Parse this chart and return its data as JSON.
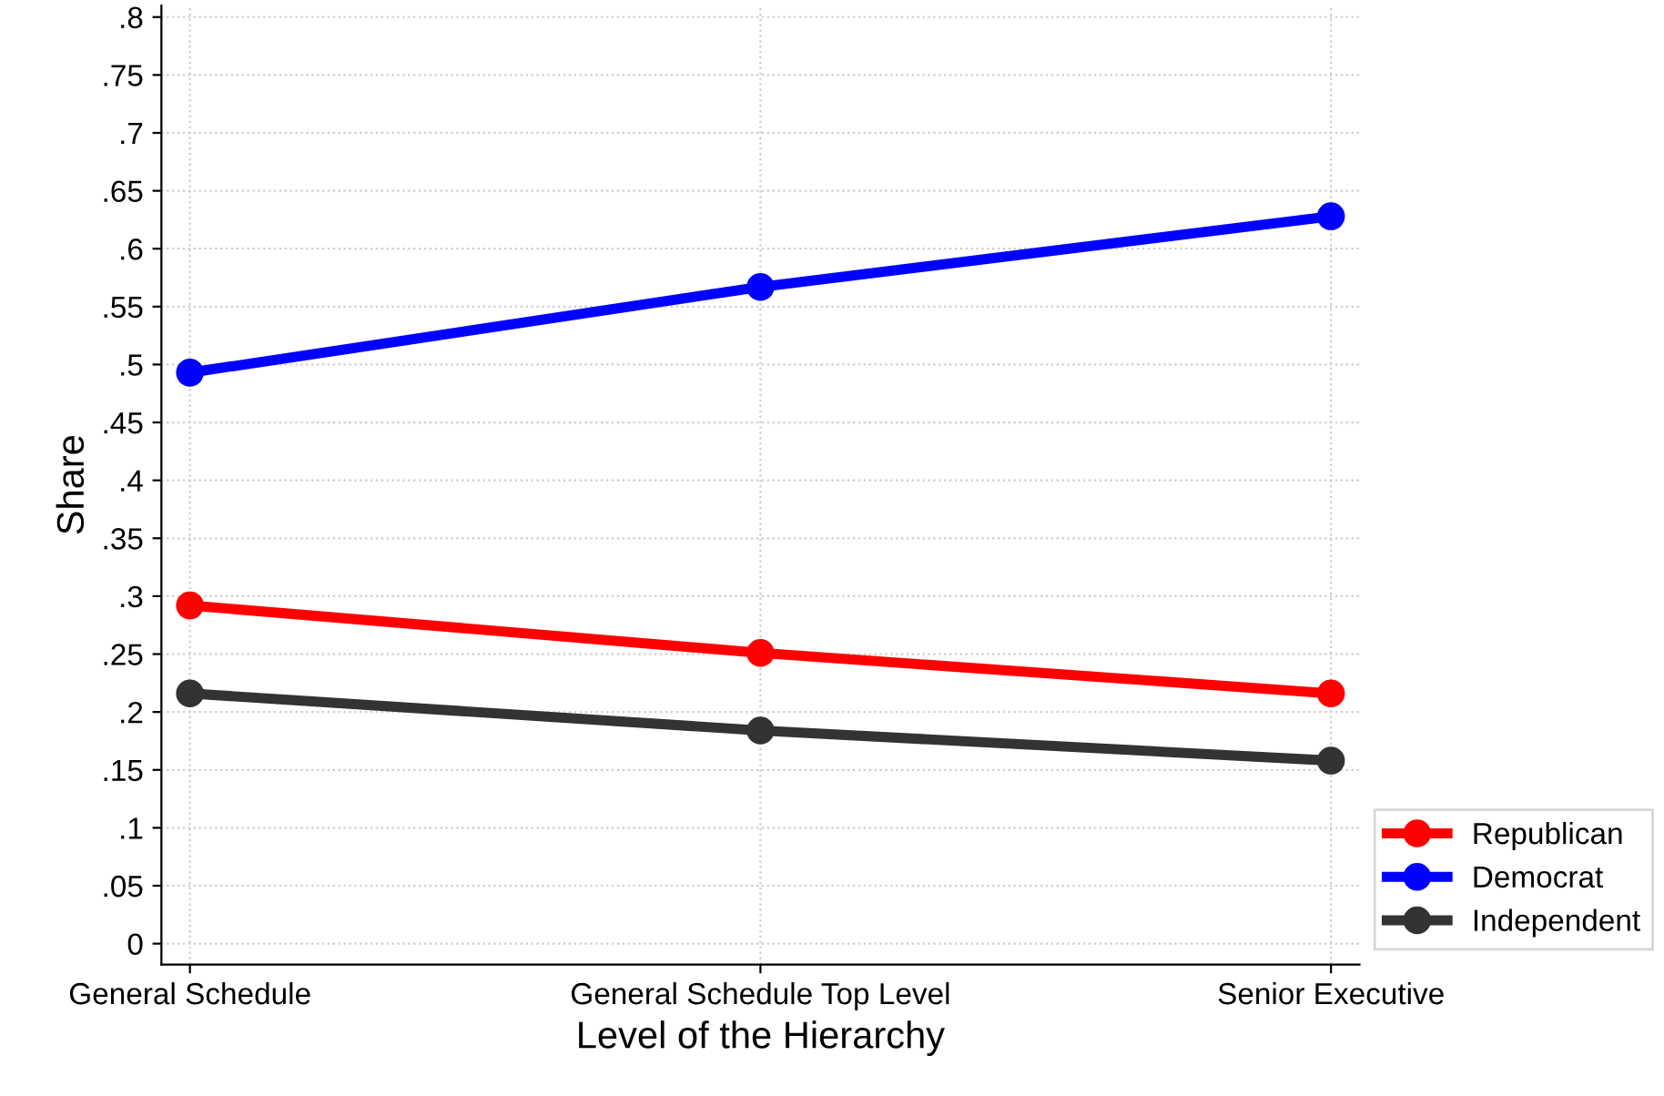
{
  "chart_data": {
    "type": "line",
    "xlabel": "Level of the Hierarchy",
    "ylabel": "Share",
    "categories": [
      "General Schedule",
      "General Schedule Top Level",
      "Senior Executive"
    ],
    "series": [
      {
        "name": "Republican",
        "color": "#ff0000",
        "values": [
          0.292,
          0.251,
          0.216
        ]
      },
      {
        "name": "Democrat",
        "color": "#0000ff",
        "values": [
          0.493,
          0.567,
          0.628
        ]
      },
      {
        "name": "Independent",
        "color": "#333333",
        "values": [
          0.216,
          0.184,
          0.158
        ]
      }
    ],
    "ylim": [
      -0.018,
      0.81
    ],
    "yticks": [
      {
        "value": 0,
        "label": "0"
      },
      {
        "value": 0.05,
        "label": ".05"
      },
      {
        "value": 0.1,
        "label": ".1"
      },
      {
        "value": 0.15,
        "label": ".15"
      },
      {
        "value": 0.2,
        "label": ".2"
      },
      {
        "value": 0.25,
        "label": ".25"
      },
      {
        "value": 0.3,
        "label": ".3"
      },
      {
        "value": 0.35,
        "label": ".35"
      },
      {
        "value": 0.4,
        "label": ".4"
      },
      {
        "value": 0.45,
        "label": ".45"
      },
      {
        "value": 0.5,
        "label": ".5"
      },
      {
        "value": 0.55,
        "label": ".55"
      },
      {
        "value": 0.6,
        "label": ".6"
      },
      {
        "value": 0.65,
        "label": ".65"
      },
      {
        "value": 0.7,
        "label": ".7"
      },
      {
        "value": 0.75,
        "label": ".75"
      },
      {
        "value": 0.8,
        "label": ".8"
      }
    ],
    "grid": true,
    "legend": "bottom right",
    "marker": "circle",
    "line_style": "solid"
  }
}
